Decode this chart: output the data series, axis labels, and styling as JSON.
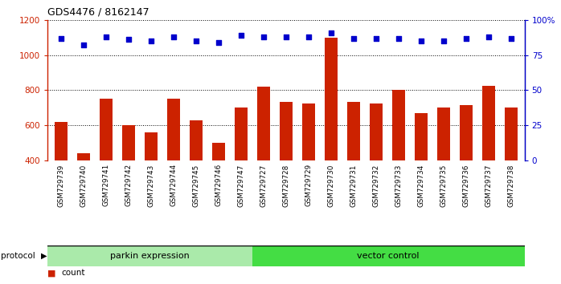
{
  "title": "GDS4476 / 8162147",
  "samples": [
    "GSM729739",
    "GSM729740",
    "GSM729741",
    "GSM729742",
    "GSM729743",
    "GSM729744",
    "GSM729745",
    "GSM729746",
    "GSM729747",
    "GSM729727",
    "GSM729728",
    "GSM729729",
    "GSM729730",
    "GSM729731",
    "GSM729732",
    "GSM729733",
    "GSM729734",
    "GSM729735",
    "GSM729736",
    "GSM729737",
    "GSM729738"
  ],
  "counts": [
    620,
    440,
    750,
    600,
    562,
    750,
    628,
    500,
    700,
    820,
    735,
    723,
    1100,
    735,
    722,
    800,
    668,
    703,
    715,
    825,
    703
  ],
  "percentile_ranks": [
    87,
    82,
    88,
    86,
    85,
    88,
    85,
    84,
    89,
    88,
    88,
    88,
    91,
    87,
    87,
    87,
    85,
    85,
    87,
    88,
    87
  ],
  "n_parkin": 9,
  "n_vector": 12,
  "bar_color": "#cc2200",
  "dot_color": "#0000cc",
  "ylim_left": [
    400,
    1200
  ],
  "ylim_right": [
    0,
    100
  ],
  "yticks_left": [
    400,
    600,
    800,
    1000,
    1200
  ],
  "yticks_right": [
    0,
    25,
    50,
    75,
    100
  ],
  "ytick_right_labels": [
    "0",
    "25",
    "50",
    "75",
    "100%"
  ],
  "group_colors": {
    "parkin expression": "#aaeaaa",
    "vector control": "#44dd44"
  },
  "protocol_label": "protocol",
  "bg_color": "#d8d8d8",
  "white": "#ffffff"
}
